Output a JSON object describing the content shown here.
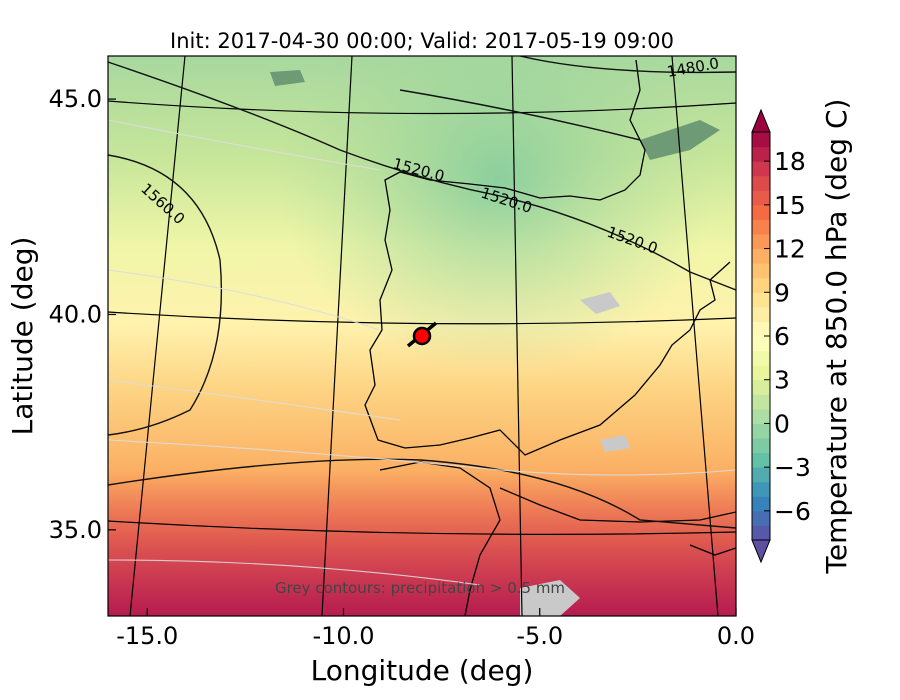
{
  "chart_data": {
    "type": "heatmap",
    "title": "Init: 2017-04-30 00:00; Valid: 2017-05-19 09:00",
    "xlabel": "Longitude (deg)",
    "ylabel": "Latitude (deg)",
    "xlim": [
      -16,
      0
    ],
    "ylim": [
      33,
      46
    ],
    "x_ticks": [
      {
        "value": -15.0,
        "label": "-15.0"
      },
      {
        "value": -10.0,
        "label": "-10.0"
      },
      {
        "value": -5.0,
        "label": "-5.0"
      },
      {
        "value": 0.0,
        "label": "0.0"
      }
    ],
    "y_ticks": [
      {
        "value": 35.0,
        "label": "35.0"
      },
      {
        "value": 40.0,
        "label": "40.0"
      },
      {
        "value": 45.0,
        "label": "45.0"
      }
    ],
    "colorbar": {
      "label": "Temperature at 850.0 hPa (deg C)",
      "range": [
        -8,
        20
      ],
      "ticks": [
        {
          "value": -6,
          "label": "−6"
        },
        {
          "value": -3,
          "label": "−3"
        },
        {
          "value": 0,
          "label": "0"
        },
        {
          "value": 3,
          "label": "3"
        },
        {
          "value": 6,
          "label": "6"
        },
        {
          "value": 9,
          "label": "9"
        },
        {
          "value": 12,
          "label": "12"
        },
        {
          "value": 15,
          "label": "15"
        },
        {
          "value": 18,
          "label": "18"
        }
      ],
      "palette": [
        "#5e4fa2",
        "#3288bd",
        "#66c2a5",
        "#abdda4",
        "#e6f598",
        "#ffffbf",
        "#fee08b",
        "#fdae61",
        "#f46d43",
        "#d53e4f",
        "#9e0142"
      ]
    },
    "geopotential_contours": [
      {
        "label": "1480.0"
      },
      {
        "label": "1520.0"
      },
      {
        "label": "1520.0"
      },
      {
        "label": "1520.0"
      },
      {
        "label": "1560.0"
      }
    ],
    "marker": {
      "lon": -7.6,
      "lat": 39.3,
      "color": "#ff0000"
    },
    "annotation": "Grey contours: precipitation > 0.5 mm",
    "palette_anchor_colors": {
      "low": "#5e4fa2",
      "high": "#9e0142"
    }
  }
}
